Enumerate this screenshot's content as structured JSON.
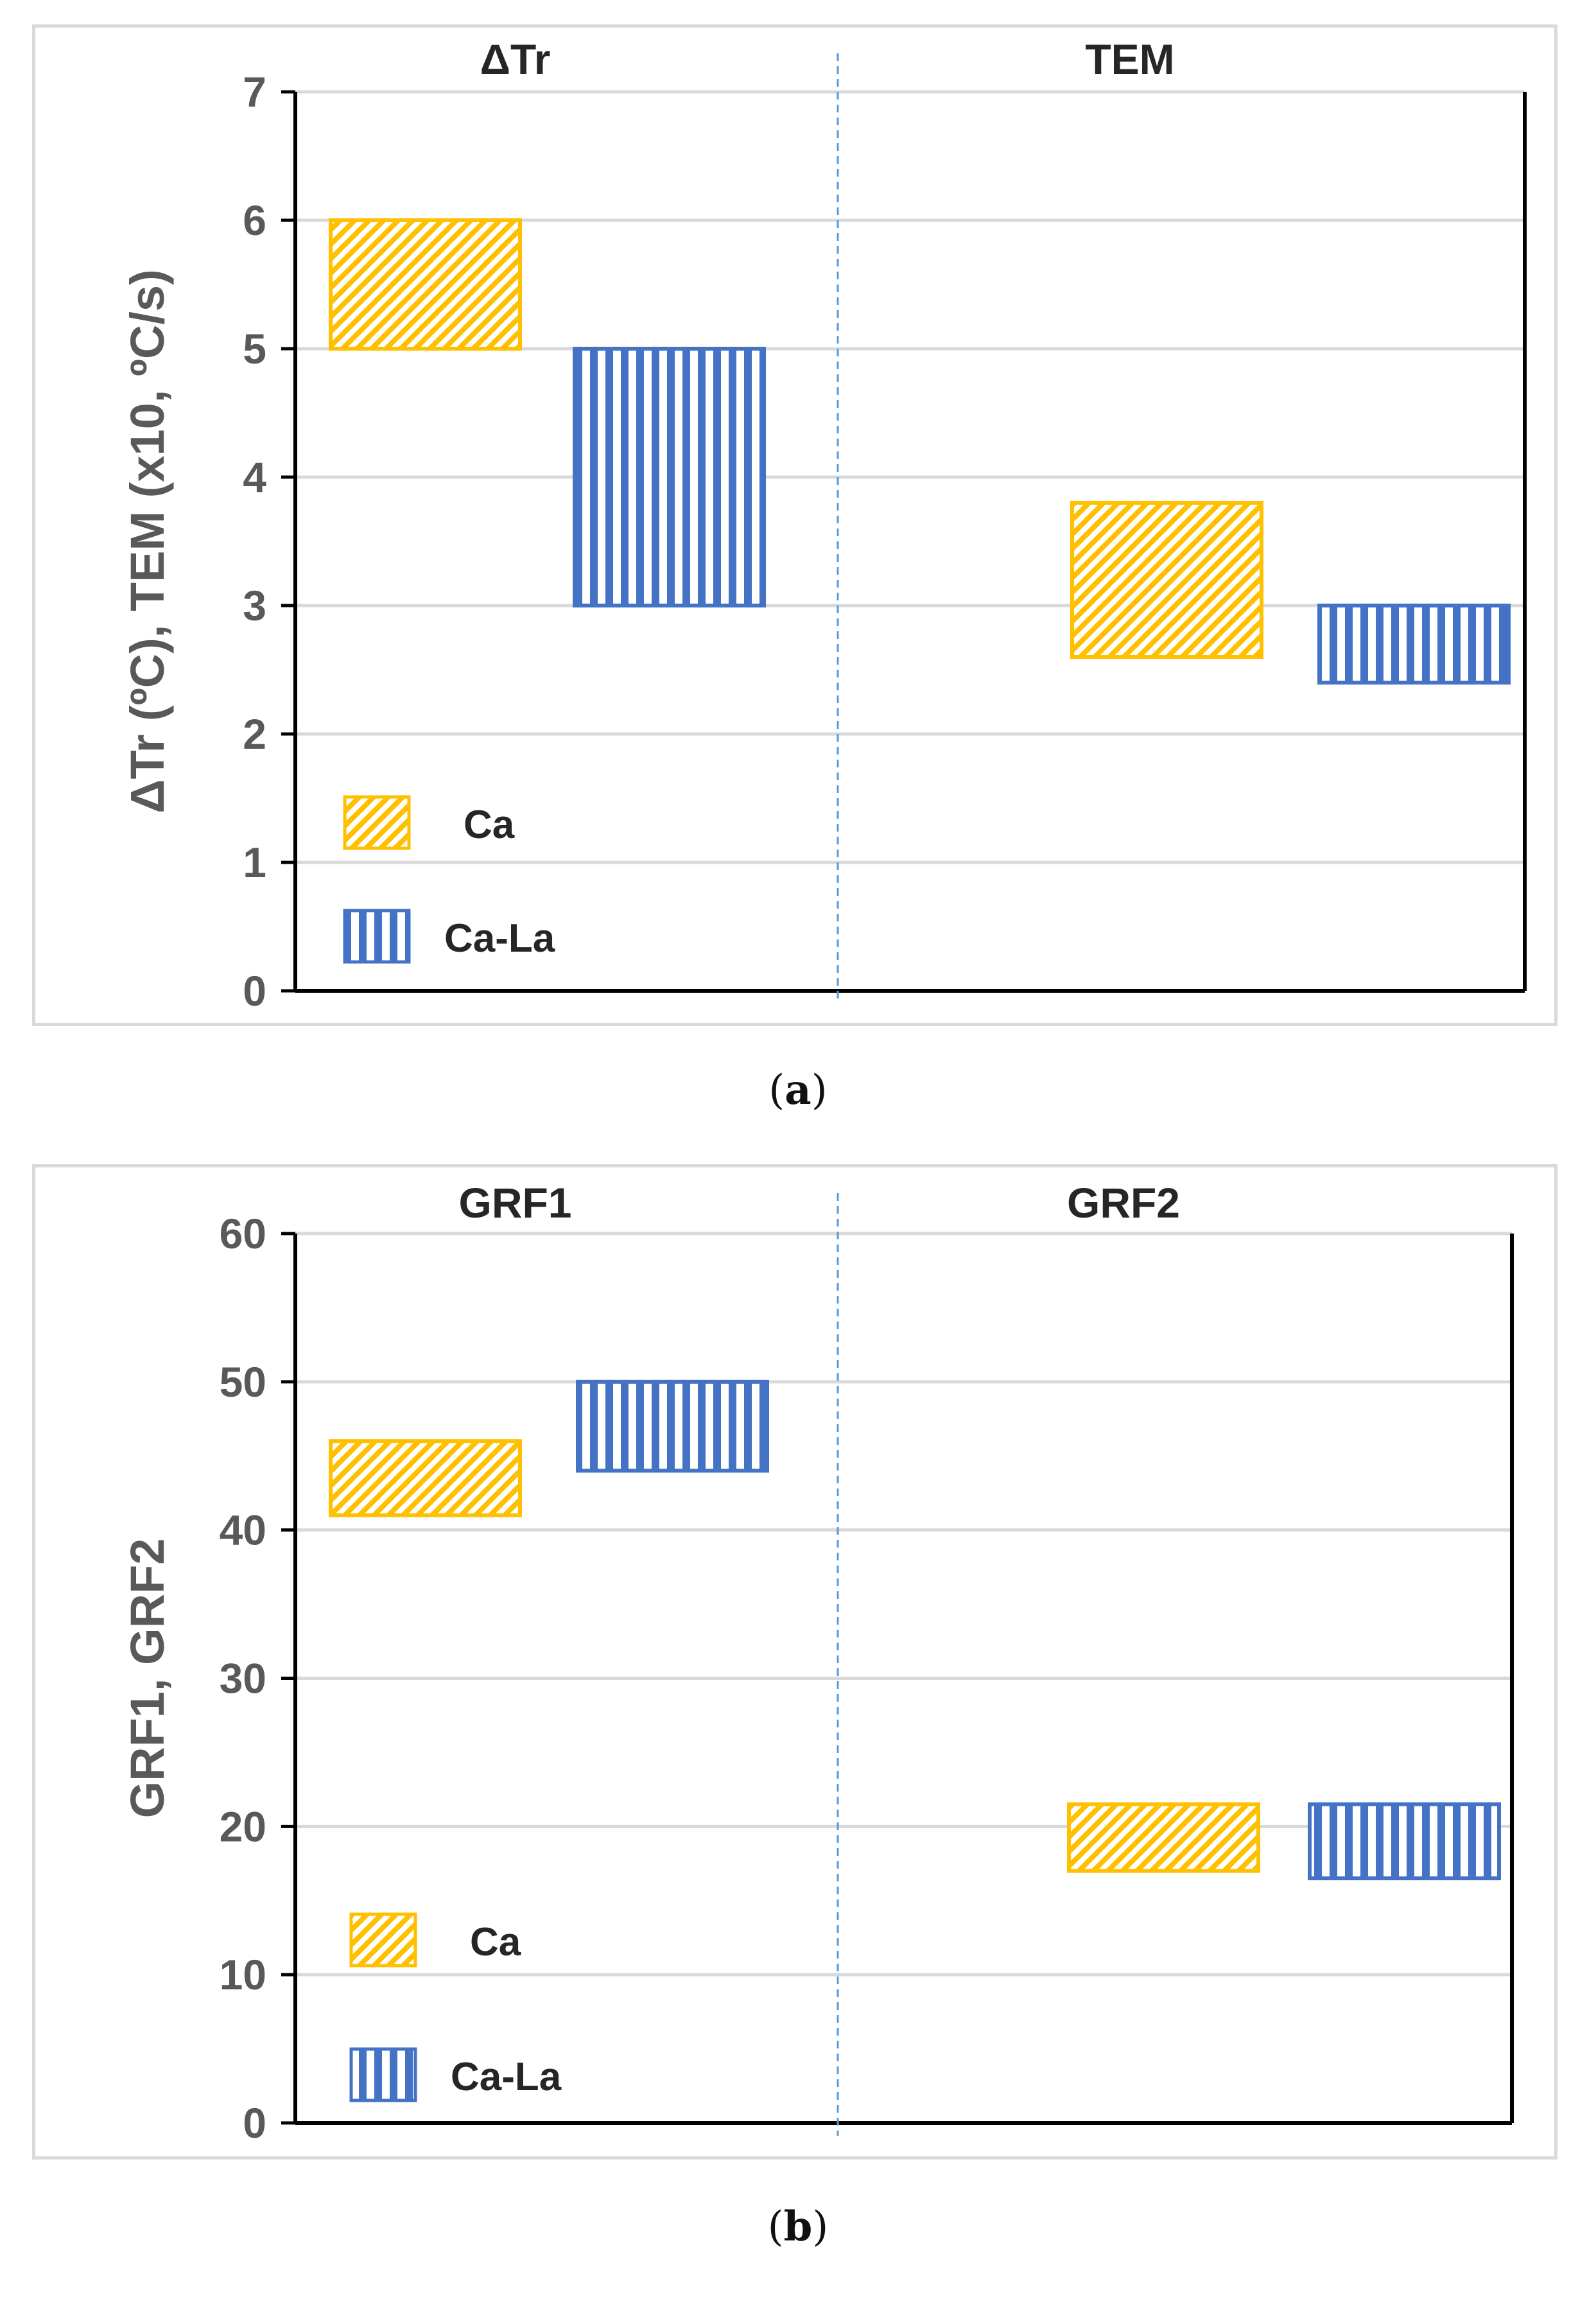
{
  "chart_data": [
    {
      "type": "floating-bar",
      "panel": "a",
      "ylabel": "ΔTr (ºC), TEM (x10, ºC/s)",
      "ylim": [
        0,
        7
      ],
      "yticks": [
        0,
        1,
        2,
        3,
        4,
        5,
        6,
        7
      ],
      "grid": true,
      "groups": [
        "ΔTr",
        "TEM"
      ],
      "series": [
        {
          "name": "Ca",
          "color": "#ffc000",
          "pattern": "diagonal",
          "ranges": [
            [
              5,
              6
            ],
            [
              2.6,
              3.8
            ]
          ]
        },
        {
          "name": "Ca-La",
          "color": "#4472c4",
          "pattern": "vertical",
          "ranges": [
            [
              3,
              5
            ],
            [
              2.4,
              3.0
            ]
          ]
        }
      ],
      "legend": [
        {
          "label": "Ca",
          "series": "Ca"
        },
        {
          "label": "Ca-La",
          "series": "Ca-La"
        }
      ],
      "legend_position": "bottom-left"
    },
    {
      "type": "floating-bar",
      "panel": "b",
      "ylabel": "GRF1, GRF2",
      "ylim": [
        0,
        60
      ],
      "yticks": [
        0,
        10,
        20,
        30,
        40,
        50,
        60
      ],
      "grid": true,
      "groups": [
        "GRF1",
        "GRF2"
      ],
      "series": [
        {
          "name": "Ca",
          "color": "#ffc000",
          "pattern": "diagonal",
          "ranges": [
            [
              41,
              46
            ],
            [
              17,
              21.5
            ]
          ]
        },
        {
          "name": "Ca-La",
          "color": "#4472c4",
          "pattern": "vertical",
          "ranges": [
            [
              44,
              50
            ],
            [
              16.5,
              21.5
            ]
          ]
        }
      ],
      "legend": [
        {
          "label": "Ca",
          "series": "Ca"
        },
        {
          "label": "Ca-La",
          "series": "Ca-La"
        }
      ],
      "legend_position": "bottom-left"
    }
  ],
  "captions": {
    "a": "a",
    "b": "b"
  }
}
